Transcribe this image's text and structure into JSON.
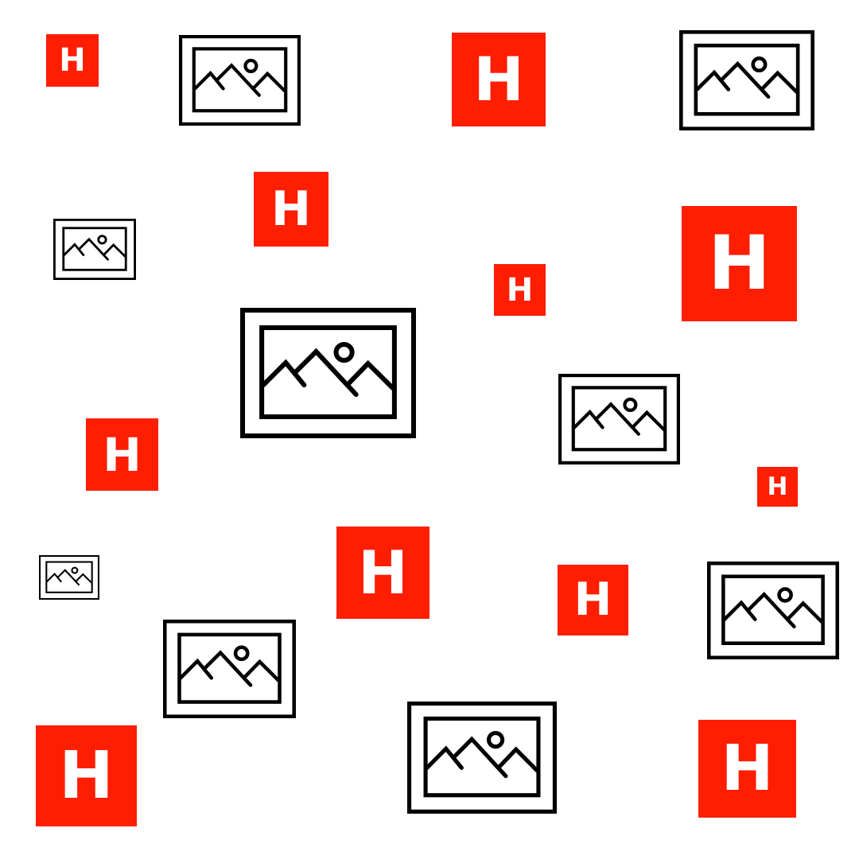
{
  "colors": {
    "background": "#ffffff",
    "h_tile": "#ff1e02",
    "h_letter": "#ffffff",
    "picture_stroke": "#000000"
  },
  "icons": {
    "h_icon_name": "h-letter-tile-icon",
    "picture_icon_name": "image-placeholder-icon",
    "h_letter": "H"
  }
}
